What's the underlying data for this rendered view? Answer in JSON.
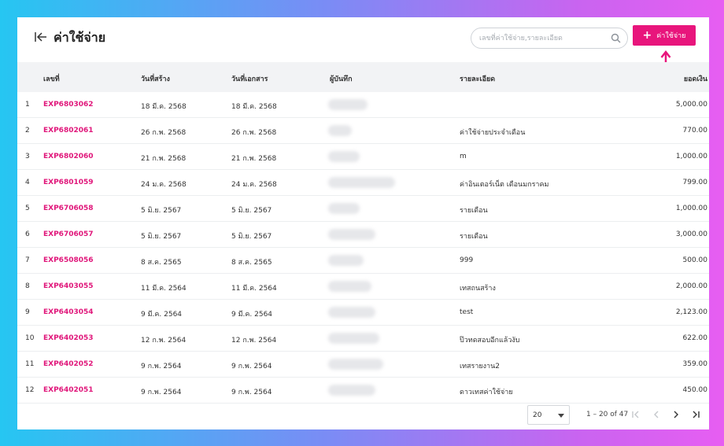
{
  "header": {
    "title": "ค่าใช้จ่าย",
    "search_placeholder": "เลขที่ค่าใช้จ่าย,รายละเอียด",
    "add_button_label": "ค่าใช้จ่าย"
  },
  "table": {
    "columns": {
      "no": "เลขที่",
      "created": "วันที่สร้าง",
      "doc_date": "วันที่เอกสาร",
      "payer": "ผู้บันทึก",
      "detail": "รายละเอียด",
      "amount": "ยอดเงิน"
    },
    "rows": [
      {
        "idx": "1",
        "no": "EXP6803062",
        "created": "18 มี.ค. 2568",
        "doc_date": "18 มี.ค. 2568",
        "detail": "",
        "amount": "5,000.00"
      },
      {
        "idx": "2",
        "no": "EXP6802061",
        "created": "26 ก.พ. 2568",
        "doc_date": "26 ก.พ. 2568",
        "detail": "ค่าใช้จ่ายประจำเดือน",
        "amount": "770.00"
      },
      {
        "idx": "3",
        "no": "EXP6802060",
        "created": "21 ก.พ. 2568",
        "doc_date": "21 ก.พ. 2568",
        "detail": "m",
        "amount": "1,000.00"
      },
      {
        "idx": "4",
        "no": "EXP6801059",
        "created": "24 ม.ค. 2568",
        "doc_date": "24 ม.ค. 2568",
        "detail": "ค่าอินเตอร์เน็ต เดือนมกราคม",
        "amount": "799.00"
      },
      {
        "idx": "5",
        "no": "EXP6706058",
        "created": "5 มิ.ย. 2567",
        "doc_date": "5 มิ.ย. 2567",
        "detail": "รายเดือน",
        "amount": "1,000.00"
      },
      {
        "idx": "6",
        "no": "EXP6706057",
        "created": "5 มิ.ย. 2567",
        "doc_date": "5 มิ.ย. 2567",
        "detail": "รายเดือน",
        "amount": "3,000.00"
      },
      {
        "idx": "7",
        "no": "EXP6508056",
        "created": "8 ส.ค. 2565",
        "doc_date": "8 ส.ค. 2565",
        "detail": "999",
        "amount": "500.00"
      },
      {
        "idx": "8",
        "no": "EXP6403055",
        "created": "11 มี.ค. 2564",
        "doc_date": "11 มี.ค. 2564",
        "detail": "เทสถนสร้าง",
        "amount": "2,000.00"
      },
      {
        "idx": "9",
        "no": "EXP6403054",
        "created": "9 มี.ค. 2564",
        "doc_date": "9 มี.ค. 2564",
        "detail": "test",
        "amount": "2,123.00"
      },
      {
        "idx": "10",
        "no": "EXP6402053",
        "created": "12 ก.พ. 2564",
        "doc_date": "12 ก.พ. 2564",
        "detail": "ป๊วทดสอบอีกแล้วงับ",
        "amount": "622.00"
      },
      {
        "idx": "11",
        "no": "EXP6402052",
        "created": "9 ก.พ. 2564",
        "doc_date": "9 ก.พ. 2564",
        "detail": "เทสรายงาน2",
        "amount": "359.00"
      },
      {
        "idx": "12",
        "no": "EXP6402051",
        "created": "9 ก.พ. 2564",
        "doc_date": "9 ก.พ. 2564",
        "detail": "ดาวเทสค่าใช้จ่าย",
        "amount": "450.00"
      }
    ]
  },
  "footer": {
    "page_size": "20",
    "range": "1 – 20 of 47"
  },
  "colors": {
    "accent": "#e8157c",
    "header_bg": "#f2f3f5"
  }
}
